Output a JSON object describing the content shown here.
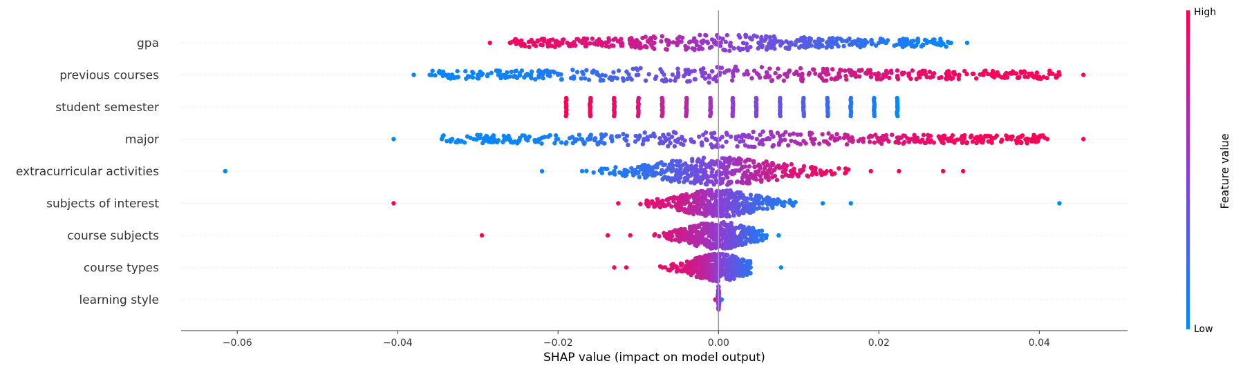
{
  "chart_data": {
    "type": "scatter",
    "subtype": "shap-beeswarm",
    "xlabel": "SHAP value (impact on model output)",
    "xlim": [
      -0.067,
      0.051
    ],
    "xticks": [
      -0.06,
      -0.04,
      -0.02,
      0.0,
      0.02,
      0.04
    ],
    "xtick_labels": [
      "−0.06",
      "−0.04",
      "−0.02",
      "0.00",
      "0.02",
      "0.04"
    ],
    "grid": false,
    "zero_line": true,
    "colorbar": {
      "title": "Feature value",
      "high_label": "High",
      "low_label": "Low",
      "low_color": "#008bfb",
      "high_color": "#ff0052"
    },
    "features": [
      {
        "name": "gpa",
        "points": [
          {
            "x": -0.0285,
            "v": 0.97
          },
          {
            "x": -0.026,
            "v": 0.95
          },
          {
            "x": -0.023,
            "v": 0.92
          },
          {
            "x": -0.02,
            "v": 0.9
          },
          {
            "x": -0.017,
            "v": 0.87
          },
          {
            "x": -0.014,
            "v": 0.83
          },
          {
            "x": -0.011,
            "v": 0.78
          },
          {
            "x": -0.008,
            "v": 0.72
          },
          {
            "x": -0.005,
            "v": 0.65
          },
          {
            "x": -0.002,
            "v": 0.58
          },
          {
            "x": 0.0015,
            "v": 0.5
          },
          {
            "x": 0.005,
            "v": 0.42
          },
          {
            "x": 0.008,
            "v": 0.36
          },
          {
            "x": 0.011,
            "v": 0.3
          },
          {
            "x": 0.014,
            "v": 0.24
          },
          {
            "x": 0.017,
            "v": 0.19
          },
          {
            "x": 0.02,
            "v": 0.14
          },
          {
            "x": 0.023,
            "v": 0.1
          },
          {
            "x": 0.026,
            "v": 0.06
          },
          {
            "x": 0.029,
            "v": 0.03
          },
          {
            "x": 0.031,
            "v": 0.0
          }
        ]
      },
      {
        "name": "previous courses",
        "points": [
          {
            "x": -0.038,
            "v": 0.05
          },
          {
            "x": -0.036,
            "v": 0.04
          },
          {
            "x": -0.034,
            "v": 0.03
          },
          {
            "x": -0.03,
            "v": 0.05
          },
          {
            "x": -0.027,
            "v": 0.06
          },
          {
            "x": -0.024,
            "v": 0.08
          },
          {
            "x": -0.02,
            "v": 0.12
          },
          {
            "x": -0.015,
            "v": 0.2
          },
          {
            "x": -0.01,
            "v": 0.32
          },
          {
            "x": -0.005,
            "v": 0.42
          },
          {
            "x": 0.0,
            "v": 0.52
          },
          {
            "x": 0.005,
            "v": 0.62
          },
          {
            "x": 0.01,
            "v": 0.7
          },
          {
            "x": 0.015,
            "v": 0.78
          },
          {
            "x": 0.02,
            "v": 0.85
          },
          {
            "x": 0.025,
            "v": 0.9
          },
          {
            "x": 0.03,
            "v": 0.94
          },
          {
            "x": 0.034,
            "v": 0.96
          },
          {
            "x": 0.039,
            "v": 0.97
          },
          {
            "x": 0.0425,
            "v": 0.98
          },
          {
            "x": 0.0455,
            "v": 1.0
          }
        ]
      },
      {
        "name": "student semester",
        "points": [
          {
            "x": -0.019,
            "v": 1.0
          },
          {
            "x": -0.016,
            "v": 0.96
          },
          {
            "x": -0.013,
            "v": 0.9
          },
          {
            "x": -0.01,
            "v": 0.83
          },
          {
            "x": -0.007,
            "v": 0.76
          },
          {
            "x": -0.004,
            "v": 0.68
          },
          {
            "x": -0.001,
            "v": 0.6
          },
          {
            "x": 0.0018,
            "v": 0.52
          },
          {
            "x": 0.0047,
            "v": 0.44
          },
          {
            "x": 0.0077,
            "v": 0.37
          },
          {
            "x": 0.0106,
            "v": 0.3
          },
          {
            "x": 0.0136,
            "v": 0.22
          },
          {
            "x": 0.0165,
            "v": 0.14
          },
          {
            "x": 0.0194,
            "v": 0.07
          },
          {
            "x": 0.0223,
            "v": 0.0
          }
        ]
      },
      {
        "name": "major",
        "points": [
          {
            "x": -0.0405,
            "v": 0.0
          },
          {
            "x": -0.0345,
            "v": 0.02
          },
          {
            "x": -0.028,
            "v": 0.04
          },
          {
            "x": -0.024,
            "v": 0.05
          },
          {
            "x": -0.02,
            "v": 0.08
          },
          {
            "x": -0.016,
            "v": 0.15
          },
          {
            "x": -0.01,
            "v": 0.3
          },
          {
            "x": -0.005,
            "v": 0.4
          },
          {
            "x": 0.0,
            "v": 0.48
          },
          {
            "x": 0.0022,
            "v": 0.5
          },
          {
            "x": 0.006,
            "v": 0.58
          },
          {
            "x": 0.012,
            "v": 0.68
          },
          {
            "x": 0.018,
            "v": 0.78
          },
          {
            "x": 0.024,
            "v": 0.88
          },
          {
            "x": 0.028,
            "v": 0.94
          },
          {
            "x": 0.033,
            "v": 0.97
          },
          {
            "x": 0.036,
            "v": 0.98
          },
          {
            "x": 0.041,
            "v": 0.99
          },
          {
            "x": 0.0455,
            "v": 1.0
          }
        ]
      },
      {
        "name": "extracurricular activities",
        "points": [
          {
            "x": -0.0615,
            "v": 0.0
          },
          {
            "x": -0.022,
            "v": 0.05
          },
          {
            "x": -0.017,
            "v": 0.06
          },
          {
            "x": -0.013,
            "v": 0.1
          },
          {
            "x": -0.009,
            "v": 0.18
          },
          {
            "x": -0.005,
            "v": 0.32
          },
          {
            "x": -0.002,
            "v": 0.42
          },
          {
            "x": 0.0,
            "v": 0.5
          },
          {
            "x": 0.002,
            "v": 0.6
          },
          {
            "x": 0.005,
            "v": 0.72
          },
          {
            "x": 0.009,
            "v": 0.85
          },
          {
            "x": 0.014,
            "v": 0.93
          },
          {
            "x": 0.019,
            "v": 0.97
          },
          {
            "x": 0.0225,
            "v": 0.98
          },
          {
            "x": 0.028,
            "v": 0.99
          },
          {
            "x": 0.0305,
            "v": 1.0
          }
        ]
      },
      {
        "name": "subjects of interest",
        "points": [
          {
            "x": -0.0405,
            "v": 1.0
          },
          {
            "x": -0.0125,
            "v": 0.96
          },
          {
            "x": -0.009,
            "v": 0.9
          },
          {
            "x": -0.005,
            "v": 0.8
          },
          {
            "x": -0.002,
            "v": 0.65
          },
          {
            "x": 0.0,
            "v": 0.5
          },
          {
            "x": 0.002,
            "v": 0.38
          },
          {
            "x": 0.005,
            "v": 0.22
          },
          {
            "x": 0.009,
            "v": 0.12
          },
          {
            "x": 0.013,
            "v": 0.06
          },
          {
            "x": 0.0165,
            "v": 0.03
          },
          {
            "x": 0.0425,
            "v": 0.0
          }
        ]
      },
      {
        "name": "course subjects",
        "points": [
          {
            "x": -0.0295,
            "v": 1.0
          },
          {
            "x": -0.0138,
            "v": 0.97
          },
          {
            "x": -0.011,
            "v": 0.93
          },
          {
            "x": -0.008,
            "v": 0.88
          },
          {
            "x": -0.005,
            "v": 0.78
          },
          {
            "x": -0.002,
            "v": 0.65
          },
          {
            "x": 0.0,
            "v": 0.52
          },
          {
            "x": 0.002,
            "v": 0.38
          },
          {
            "x": 0.004,
            "v": 0.22
          },
          {
            "x": 0.006,
            "v": 0.1
          },
          {
            "x": 0.0075,
            "v": 0.0
          }
        ]
      },
      {
        "name": "course types",
        "points": [
          {
            "x": -0.013,
            "v": 1.0
          },
          {
            "x": -0.0115,
            "v": 0.98
          },
          {
            "x": -0.007,
            "v": 0.92
          },
          {
            "x": -0.004,
            "v": 0.84
          },
          {
            "x": -0.0015,
            "v": 0.7
          },
          {
            "x": 0.0,
            "v": 0.5
          },
          {
            "x": 0.002,
            "v": 0.32
          },
          {
            "x": 0.004,
            "v": 0.16
          },
          {
            "x": 0.0078,
            "v": 0.0
          }
        ]
      },
      {
        "name": "learning style",
        "points": [
          {
            "x": -0.0004,
            "v": 1.0
          },
          {
            "x": -0.0002,
            "v": 0.8
          },
          {
            "x": 0.0,
            "v": 0.5
          },
          {
            "x": 0.0002,
            "v": 0.2
          },
          {
            "x": 0.0004,
            "v": 0.0
          }
        ]
      }
    ]
  }
}
